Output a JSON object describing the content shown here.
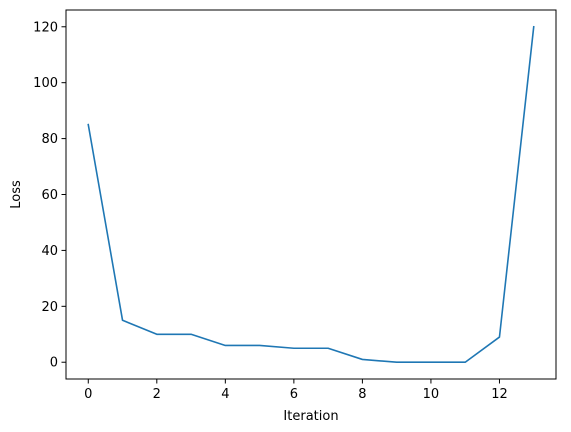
{
  "chart_data": {
    "type": "line",
    "title": "",
    "xlabel": "Iteration",
    "ylabel": "Loss",
    "xlim": [
      -0.65,
      13.65
    ],
    "ylim": [
      -6,
      126
    ],
    "x_ticks": [
      0,
      2,
      4,
      6,
      8,
      10,
      12
    ],
    "y_ticks": [
      0,
      20,
      40,
      60,
      80,
      100,
      120
    ],
    "grid": false,
    "legend": "none",
    "series": [
      {
        "color": "#1f77b4",
        "x": [
          0,
          1,
          2,
          3,
          4,
          5,
          6,
          7,
          8,
          9,
          10,
          11,
          12,
          13
        ],
        "y": [
          85,
          15,
          10,
          10,
          6,
          6,
          5,
          5,
          1,
          0,
          0,
          0,
          9,
          120
        ]
      }
    ]
  }
}
